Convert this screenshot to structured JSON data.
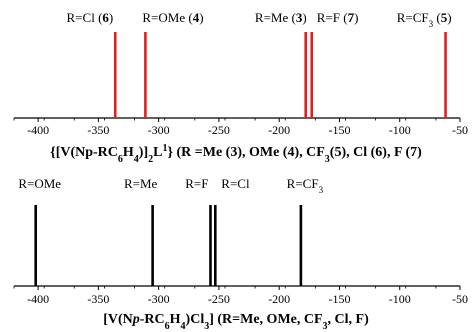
{
  "chart_data": [
    {
      "type": "stick",
      "color": "#e02020",
      "xlim": [
        -420,
        -50
      ],
      "x_ticks": [
        -400,
        -350,
        -300,
        -250,
        -200,
        -150,
        -100,
        -50
      ],
      "peaks": [
        {
          "x": -336,
          "label": "R=Cl",
          "num": "6"
        },
        {
          "x": -311,
          "label": "R=OMe",
          "num": "4"
        },
        {
          "x": -178,
          "label": "R=Me",
          "num": "3"
        },
        {
          "x": -173,
          "label": "R=F",
          "num": "7"
        },
        {
          "x": -62,
          "label": "R=CF",
          "sub": "3",
          "num": "5"
        }
      ],
      "caption": [
        {
          "t": "{[V(Np-RC"
        },
        {
          "t": "6",
          "s": "sub"
        },
        {
          "t": "H"
        },
        {
          "t": "4",
          "s": "sub"
        },
        {
          "t": ")]"
        },
        {
          "t": "2",
          "s": "sub"
        },
        {
          "t": "L"
        },
        {
          "t": "1",
          "s": "sup"
        },
        {
          "t": "} (R =Me (3), OMe (4), CF"
        },
        {
          "t": "3",
          "s": "sub"
        },
        {
          "t": "(5), Cl (6), F (7)"
        }
      ]
    },
    {
      "type": "stick",
      "color": "#000000",
      "xlim": [
        -420,
        -50
      ],
      "x_ticks": [
        -400,
        -350,
        -300,
        -250,
        -200,
        -150,
        -100,
        -50
      ],
      "peaks": [
        {
          "x": -402,
          "label": "R=OMe"
        },
        {
          "x": -305,
          "label": "R=Me"
        },
        {
          "x": -257,
          "label": "R=F"
        },
        {
          "x": -253,
          "label": "R=Cl"
        },
        {
          "x": -182,
          "label": "R=CF",
          "sub": "3"
        }
      ],
      "caption": [
        {
          "t": "[V(N"
        },
        {
          "t": "p",
          "s": "it"
        },
        {
          "t": "-RC"
        },
        {
          "t": "6",
          "s": "sub"
        },
        {
          "t": "H"
        },
        {
          "t": "4",
          "s": "sub"
        },
        {
          "t": ")Cl"
        },
        {
          "t": "3",
          "s": "sub"
        },
        {
          "t": "] (R=Me, OMe, CF"
        },
        {
          "t": "3",
          "s": "sub"
        },
        {
          "t": ", Cl, F)"
        }
      ]
    }
  ]
}
